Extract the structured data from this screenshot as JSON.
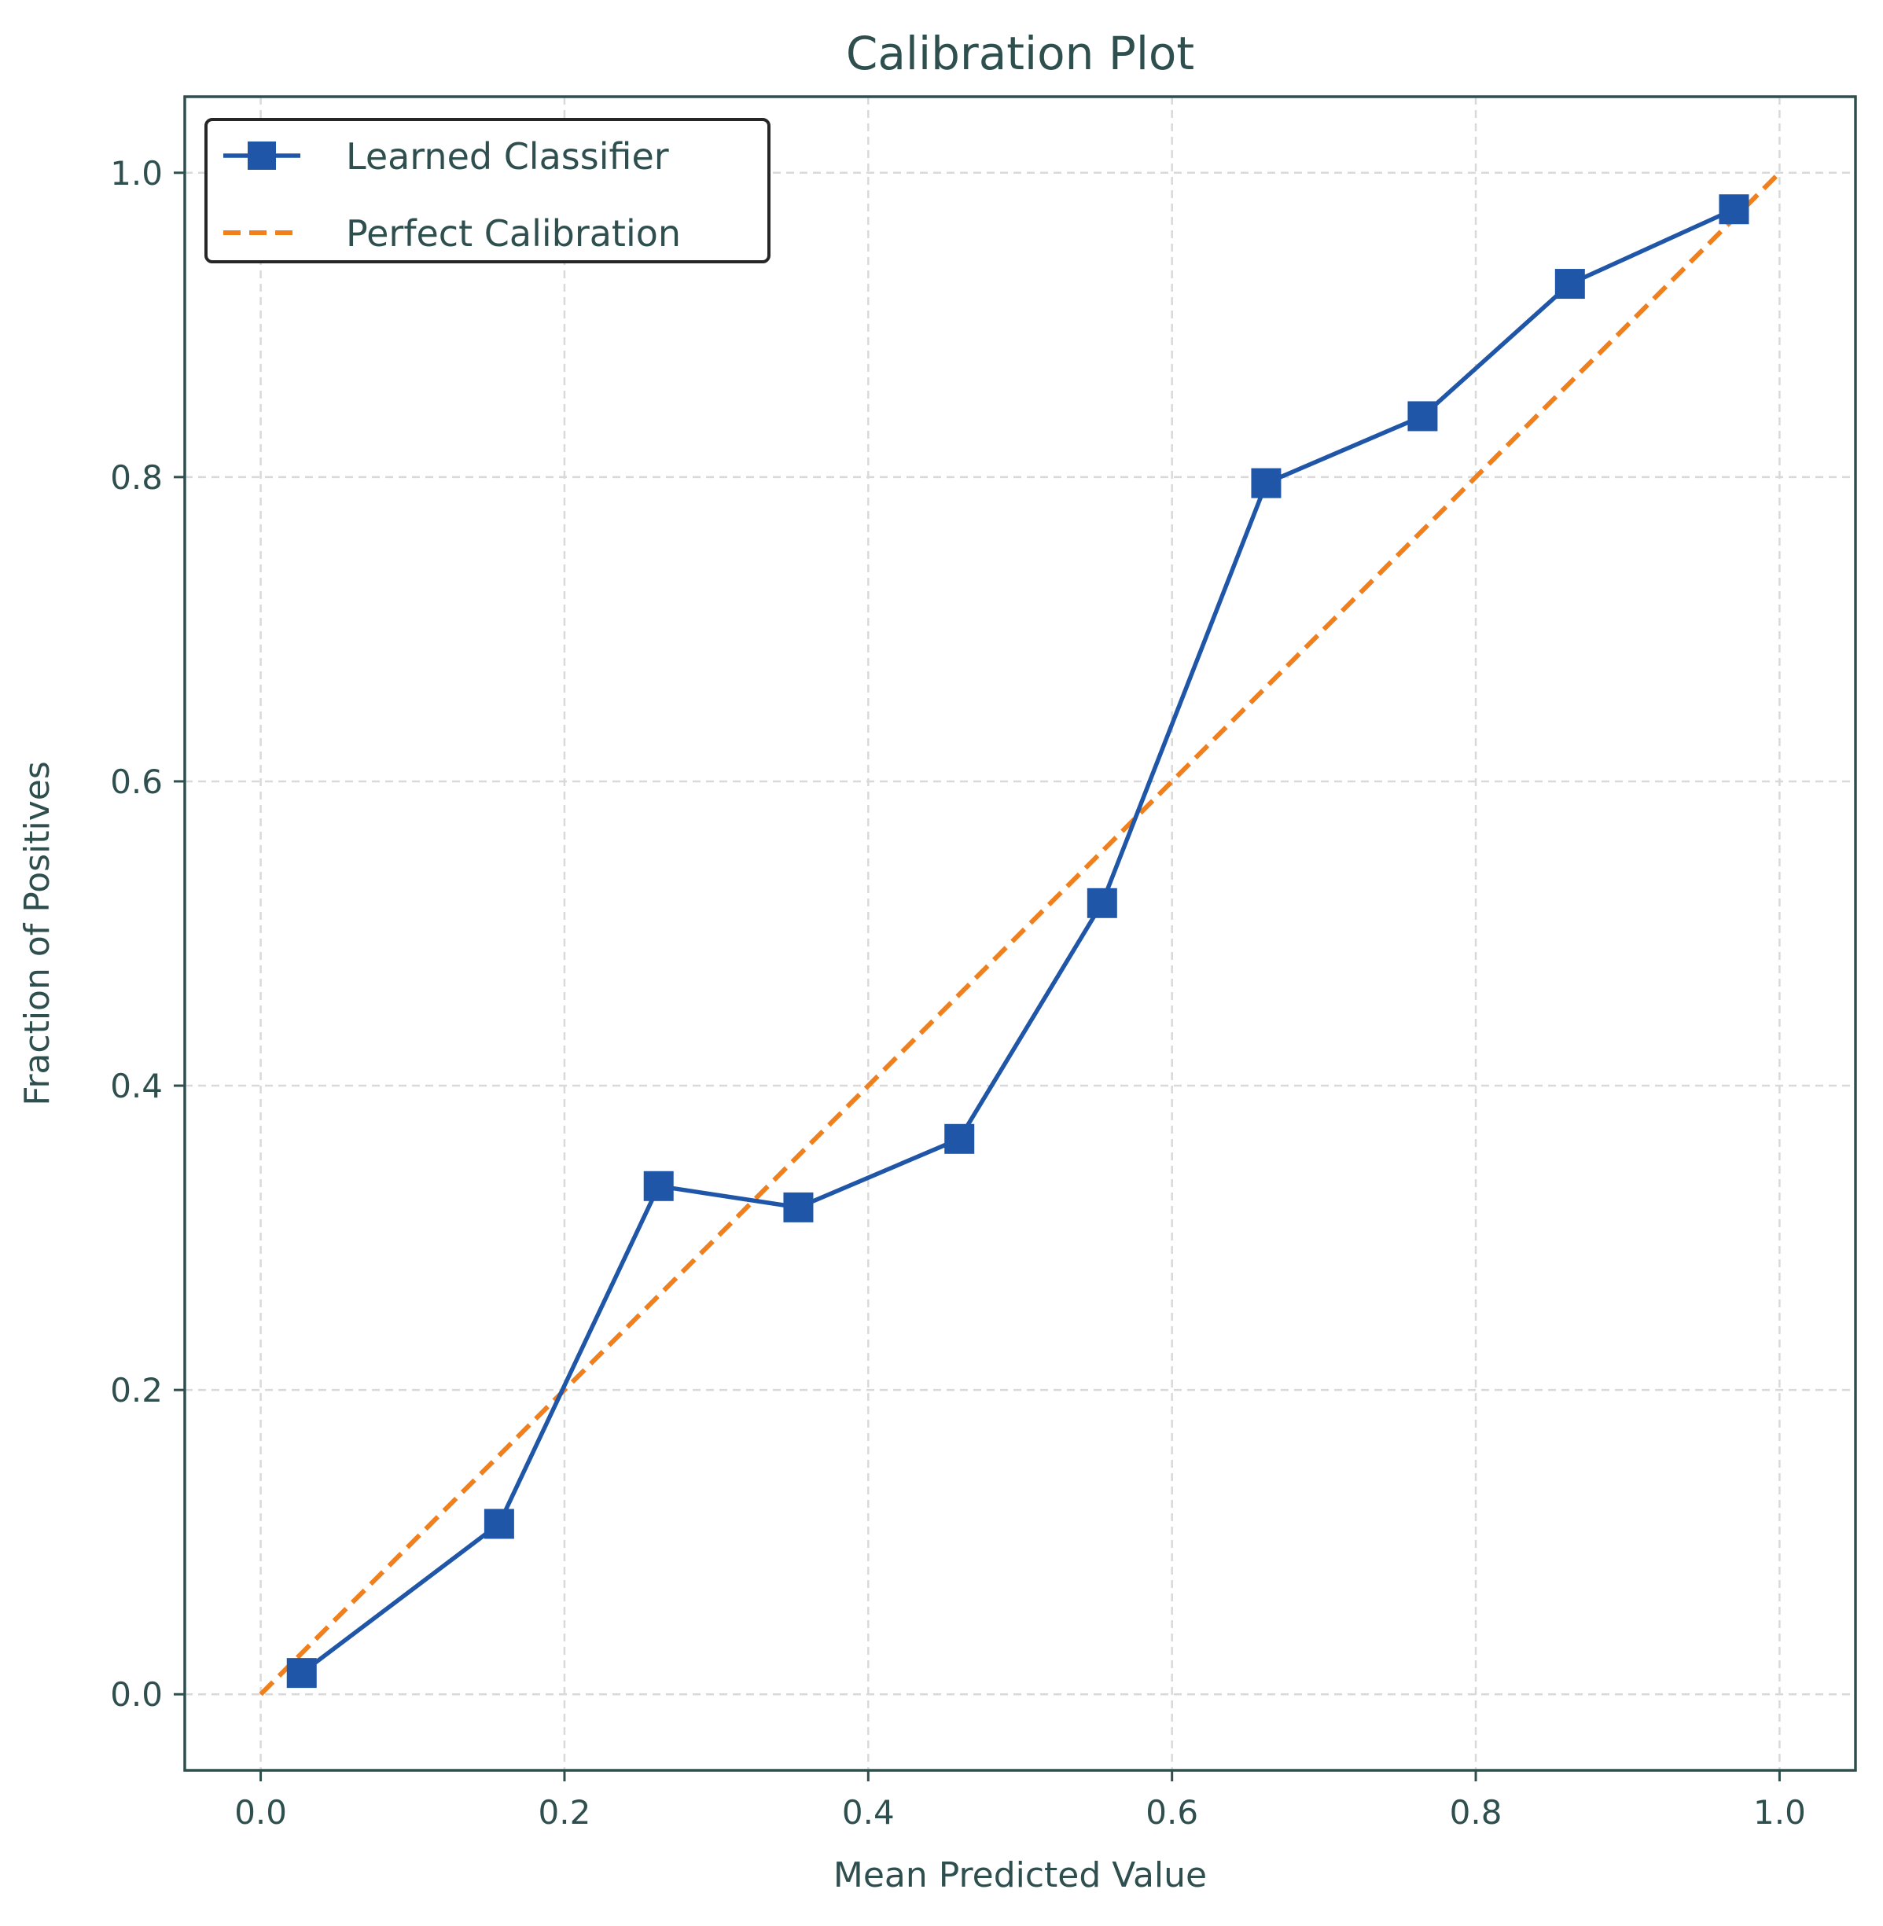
{
  "chart_data": {
    "type": "line",
    "title": "Calibration Plot",
    "xlabel": "Mean Predicted Value",
    "ylabel": "Fraction of Positives",
    "xlim": [
      -0.05,
      1.05
    ],
    "ylim": [
      -0.05,
      1.05
    ],
    "xticks": [
      "0.0",
      "0.2",
      "0.4",
      "0.6",
      "0.8",
      "1.0"
    ],
    "yticks": [
      "0.0",
      "0.2",
      "0.4",
      "0.6",
      "0.8",
      "1.0"
    ],
    "grid": true,
    "legend_position": "upper-left",
    "series": [
      {
        "name": "Learned Classifier",
        "color": "#1f56a8",
        "marker": "square",
        "line_style": "solid",
        "x": [
          0.027,
          0.157,
          0.262,
          0.354,
          0.46,
          0.554,
          0.662,
          0.765,
          0.862,
          0.97
        ],
        "y": [
          0.014,
          0.112,
          0.334,
          0.32,
          0.365,
          0.52,
          0.796,
          0.84,
          0.927,
          0.976
        ]
      },
      {
        "name": "Perfect Calibration",
        "color": "#f0801e",
        "marker": "none",
        "line_style": "dashed",
        "x": [
          0.0,
          1.0
        ],
        "y": [
          0.0,
          1.0
        ]
      }
    ],
    "colors": {
      "text": "#2f4f4f",
      "axes": "#2f4f4f",
      "grid": "#d9d9d9"
    }
  }
}
